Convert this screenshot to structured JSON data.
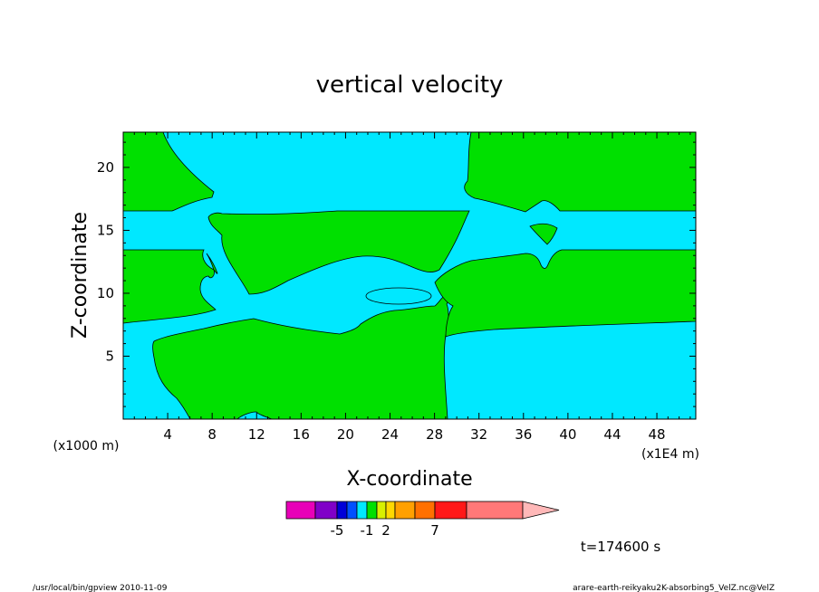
{
  "chart_data": {
    "type": "heatmap",
    "title": "vertical velocity",
    "xlabel": "X-coordinate",
    "ylabel": "Z-coordinate",
    "x_unit_note": "(x1E4 m)",
    "y_unit_note": "(x1000 m)",
    "xlim": [
      0,
      51.5
    ],
    "ylim": [
      0,
      22.8
    ],
    "x_ticks": [
      4,
      8,
      12,
      16,
      20,
      24,
      28,
      32,
      36,
      40,
      44,
      48
    ],
    "x_tick_labels": [
      "4",
      "8",
      "12",
      "16",
      "20",
      "24",
      "28",
      "32",
      "36",
      "40",
      "44",
      "48"
    ],
    "y_ticks": [
      5,
      10,
      15,
      20
    ],
    "y_tick_labels": [
      "5",
      "10",
      "15",
      "20"
    ],
    "field_colors": {
      "cyan": "#00e8ff",
      "green": "#00e000"
    },
    "colorbar": {
      "colors": [
        "#e800b8",
        "#8000c8",
        "#0000d8",
        "#0050ff",
        "#00e8ff",
        "#00e000",
        "#d8f000",
        "#ffd800",
        "#ffa000",
        "#ff7000",
        "#ff1818",
        "#ff7878",
        "#ffb8b8"
      ],
      "tick_labels": [
        "-5",
        "-1",
        "2",
        "7"
      ],
      "tick_values": [
        -5,
        -1,
        2,
        7
      ]
    },
    "time_label": "t=174600 s"
  },
  "footer": {
    "left": "/usr/local/bin/gpview  2010-11-09",
    "right": "arare-earth-reikyaku2K-absorbing5_VelZ.nc@VelZ"
  }
}
